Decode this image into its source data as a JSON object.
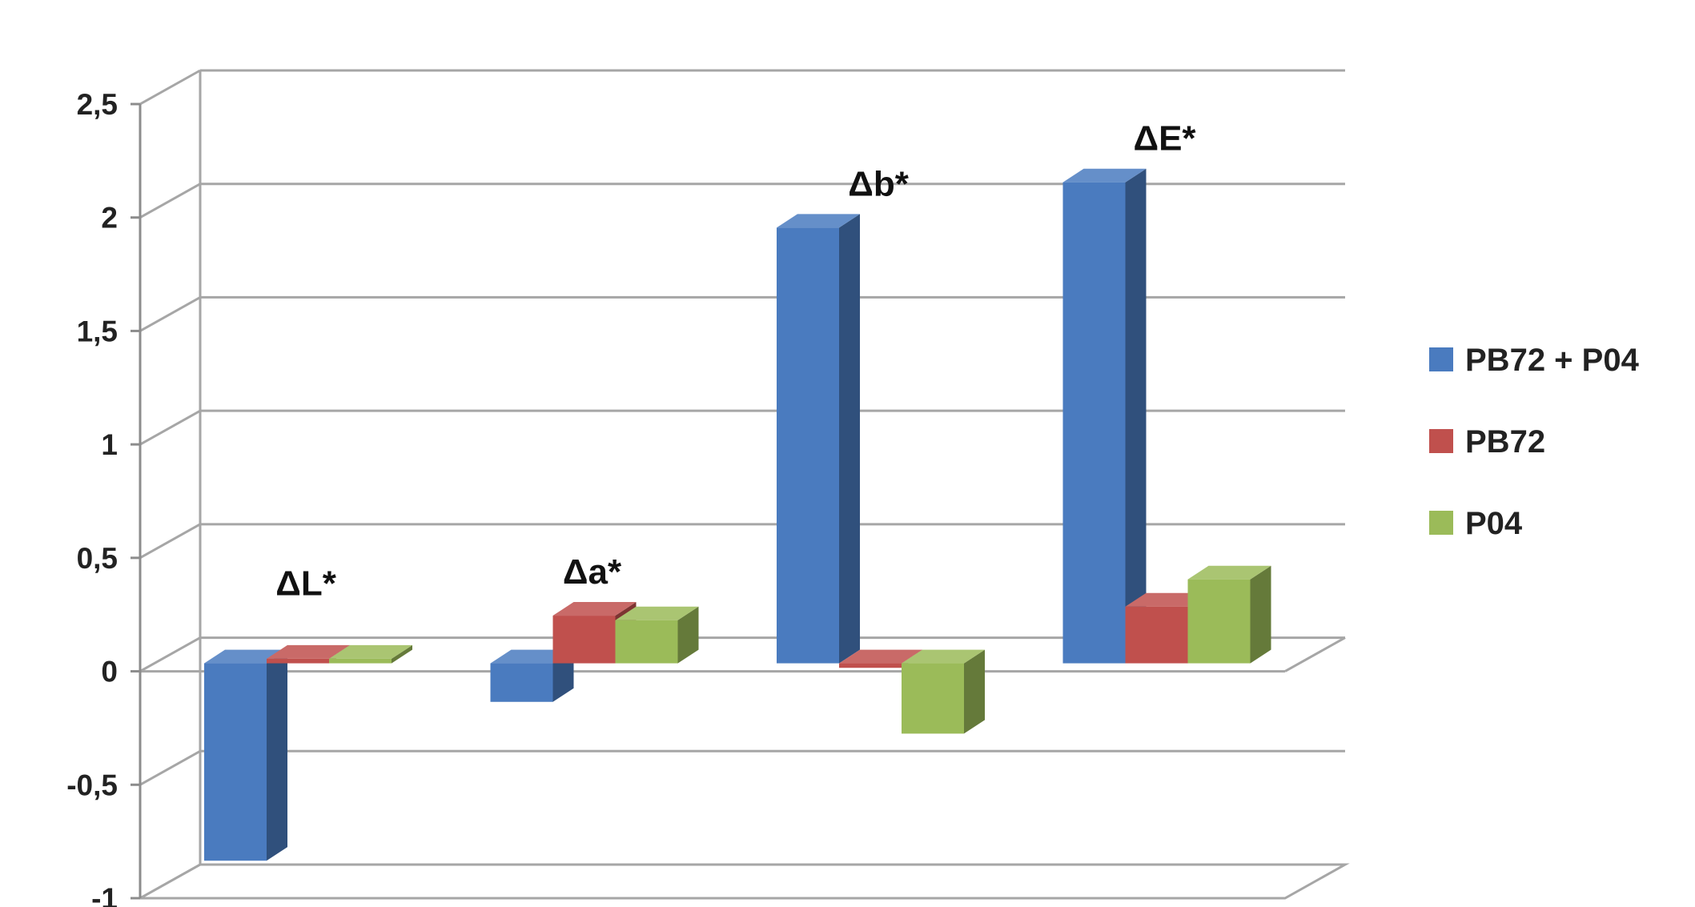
{
  "chart_data": {
    "type": "bar",
    "categories": [
      "ΔL*",
      "Δa*",
      "Δb*",
      "ΔE*"
    ],
    "series": [
      {
        "name": "PB72 + P04",
        "values": [
          -0.87,
          -0.17,
          1.92,
          2.12
        ],
        "color": "#4a7bbf"
      },
      {
        "name": "PB72",
        "values": [
          0.02,
          0.21,
          -0.02,
          0.25
        ],
        "color": "#c0504d"
      },
      {
        "name": "P04",
        "values": [
          0.02,
          0.19,
          -0.31,
          0.37
        ],
        "color": "#9bbb59"
      }
    ],
    "yticks": [
      "-1",
      "-0,5",
      "0",
      "0,5",
      "1",
      "1,5",
      "2",
      "2,5"
    ],
    "ylim": [
      -1,
      2.5
    ],
    "grid": true,
    "legend_position": "right",
    "three_d": true
  }
}
